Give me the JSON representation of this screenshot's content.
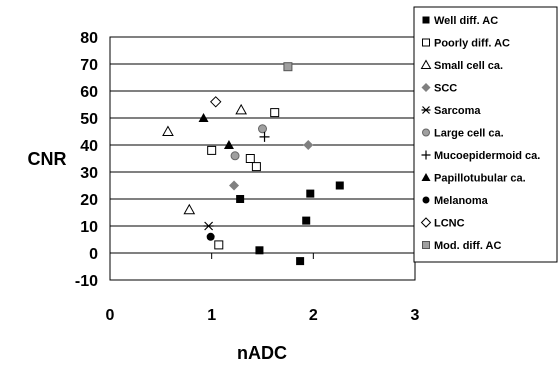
{
  "chart_data": {
    "type": "scatter",
    "title": "",
    "xlabel": "nADC",
    "ylabel": "CNR",
    "xlim": [
      0,
      3
    ],
    "ylim": [
      -10,
      80
    ],
    "x_ticks": [
      "0",
      "1",
      "2",
      "3"
    ],
    "y_ticks": [
      "-10",
      "0",
      "10",
      "20",
      "30",
      "40",
      "50",
      "60",
      "70",
      "80"
    ],
    "grid": "horizontal",
    "legend_position": "right",
    "series": [
      {
        "name": "Well diff. AC",
        "marker": "square-filled",
        "color": "#000000",
        "points": [
          [
            1.28,
            20
          ],
          [
            1.47,
            1
          ],
          [
            1.87,
            -3
          ],
          [
            1.93,
            12
          ],
          [
            1.97,
            22
          ],
          [
            2.26,
            25
          ]
        ]
      },
      {
        "name": "Poorly diff. AC",
        "marker": "square-open",
        "color": "#000000",
        "points": [
          [
            1.0,
            38
          ],
          [
            1.07,
            3
          ],
          [
            1.38,
            35
          ],
          [
            1.44,
            32
          ],
          [
            1.62,
            52
          ]
        ]
      },
      {
        "name": "Small cell ca.",
        "marker": "triangle-open",
        "color": "#000000",
        "points": [
          [
            0.57,
            45
          ],
          [
            0.78,
            16
          ],
          [
            1.29,
            53
          ]
        ]
      },
      {
        "name": "SCC",
        "marker": "diamond-filled",
        "color": "#808080",
        "points": [
          [
            1.22,
            25
          ],
          [
            1.95,
            40
          ]
        ]
      },
      {
        "name": "Sarcoma",
        "marker": "asterisk",
        "color": "#000000",
        "points": [
          [
            0.97,
            10
          ]
        ]
      },
      {
        "name": "Large cell ca.",
        "marker": "circle-filled",
        "color": "#a0a0a0",
        "points": [
          [
            1.23,
            36
          ],
          [
            1.5,
            46
          ]
        ]
      },
      {
        "name": "Mucoepidermoid ca.",
        "marker": "plus",
        "color": "#000000",
        "points": [
          [
            1.52,
            43
          ]
        ]
      },
      {
        "name": "Papillotubular ca.",
        "marker": "triangle-filled",
        "color": "#000000",
        "points": [
          [
            0.92,
            50
          ],
          [
            1.17,
            40
          ]
        ]
      },
      {
        "name": "Melanoma",
        "marker": "circle-black",
        "color": "#000000",
        "points": [
          [
            0.99,
            6
          ]
        ]
      },
      {
        "name": "LCNC",
        "marker": "diamond-open",
        "color": "#000000",
        "points": [
          [
            1.04,
            56
          ]
        ]
      },
      {
        "name": "Mod. diff. AC",
        "marker": "square-gray",
        "color": "#a0a0a0",
        "points": [
          [
            1.75,
            69
          ]
        ]
      }
    ]
  }
}
